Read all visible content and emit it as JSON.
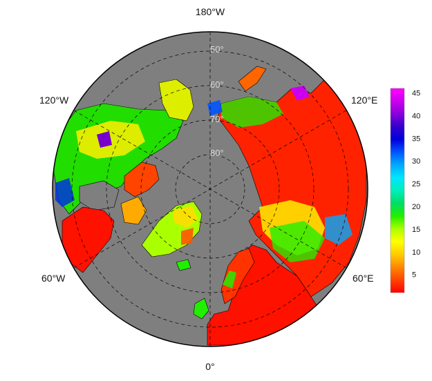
{
  "map": {
    "projection": "north-polar-stereographic",
    "ocean_color": "#7f7f7f",
    "land_nodata_color": "#7f7f7f",
    "border_color": "#000000",
    "graticule_style": "dashed",
    "longitude_labels": {
      "top": "180°W",
      "upper_left": "120°W",
      "upper_right": "120°E",
      "lower_left": "60°W",
      "lower_right": "60°E",
      "bottom": "0°"
    },
    "latitude_labels": [
      "50°",
      "60°",
      "70°",
      "80°"
    ]
  },
  "colorbar": {
    "ticks": [
      "45",
      "40",
      "35",
      "30",
      "25",
      "20",
      "15",
      "10",
      "5"
    ],
    "min": 1,
    "max": 46,
    "colors": [
      "#ff0000",
      "#ff4400",
      "#ff8800",
      "#ffcc00",
      "#ffff00",
      "#aaff00",
      "#22ee00",
      "#00dd66",
      "#00eebb",
      "#00e5ff",
      "#00aaff",
      "#0055ff",
      "#0000dd",
      "#3300cc",
      "#8800dd",
      "#cc00ee",
      "#ff00ff"
    ]
  },
  "regions": {
    "europe": "red",
    "siberia": "red",
    "scandinavia": "red",
    "canada_north": "green-yellow",
    "canada_south": "red",
    "alaska": "yellow-green",
    "greenland": "yellow-green",
    "russian_far_east": "green-yellow",
    "central_siberia": "yellow-green"
  }
}
